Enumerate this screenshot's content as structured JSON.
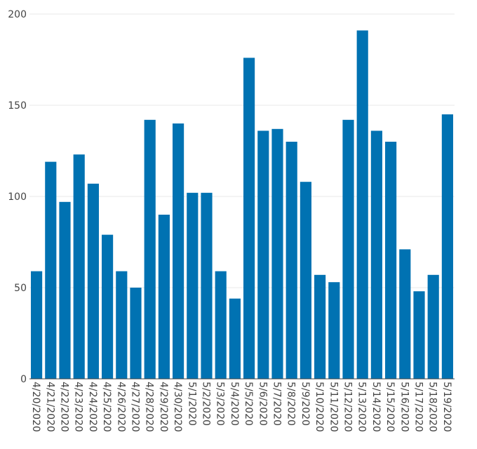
{
  "chart_data": {
    "type": "bar",
    "title": "",
    "xlabel": "",
    "ylabel": "",
    "categories": [
      "4/20/2020",
      "4/21/2020",
      "4/22/2020",
      "4/23/2020",
      "4/24/2020",
      "4/25/2020",
      "4/26/2020",
      "4/27/2020",
      "4/28/2020",
      "4/29/2020",
      "4/30/2020",
      "5/1/2020",
      "5/2/2020",
      "5/3/2020",
      "5/4/2020",
      "5/5/2020",
      "5/6/2020",
      "5/7/2020",
      "5/8/2020",
      "5/9/2020",
      "5/10/2020",
      "5/11/2020",
      "5/12/2020",
      "5/13/2020",
      "5/14/2020",
      "5/15/2020",
      "5/16/2020",
      "5/17/2020",
      "5/18/2020",
      "5/19/2020"
    ],
    "values": [
      59,
      119,
      97,
      123,
      107,
      79,
      59,
      50,
      142,
      90,
      140,
      102,
      102,
      59,
      44,
      176,
      136,
      137,
      130,
      108,
      57,
      53,
      142,
      191,
      136,
      130,
      71,
      48,
      57,
      145
    ],
    "ylim": [
      0,
      200
    ],
    "yticks": [
      0,
      50,
      100,
      150,
      200
    ],
    "grid": true,
    "legend": "none",
    "bar_color": "#0072b2"
  }
}
